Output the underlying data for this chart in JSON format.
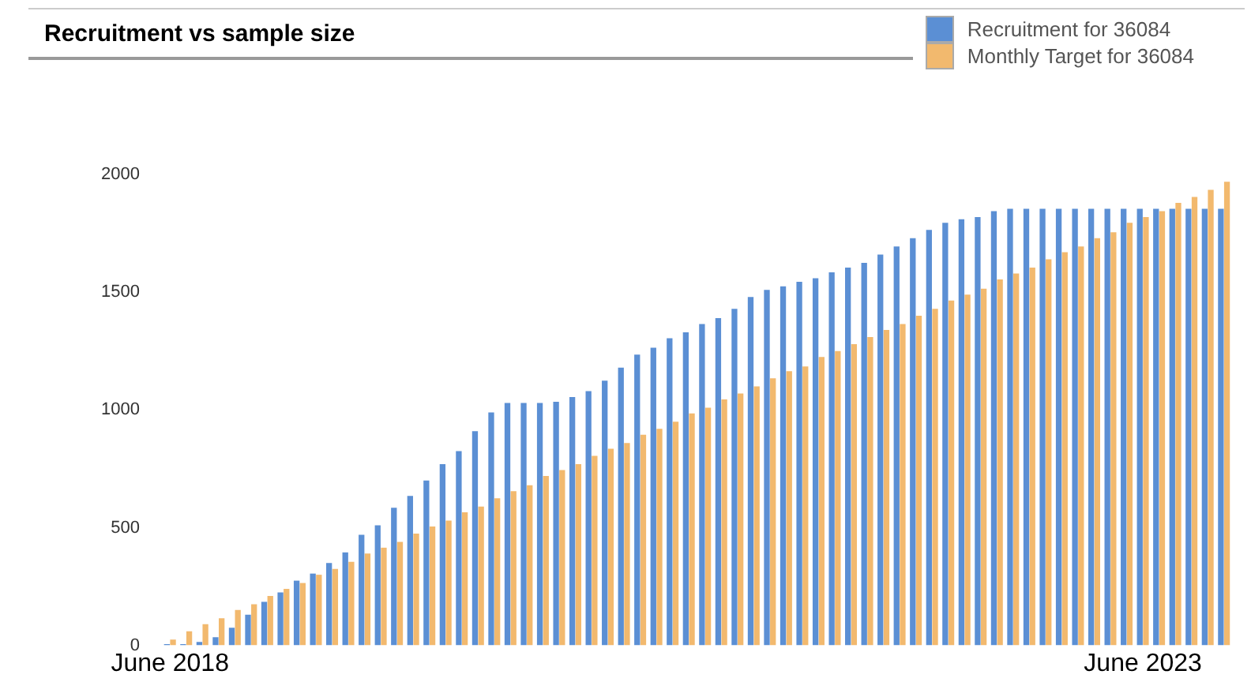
{
  "chart_data": {
    "type": "bar",
    "title": "Recruitment vs sample size",
    "categories": [
      "June 2018",
      null,
      null,
      null,
      null,
      null,
      null,
      null,
      null,
      null,
      null,
      null,
      null,
      null,
      null,
      null,
      null,
      null,
      null,
      null,
      null,
      null,
      null,
      null,
      null,
      null,
      null,
      null,
      null,
      null,
      null,
      null,
      null,
      null,
      null,
      null,
      null,
      null,
      null,
      null,
      null,
      null,
      null,
      null,
      null,
      null,
      null,
      null,
      null,
      null,
      null,
      null,
      null,
      null,
      null,
      null,
      null,
      null,
      null,
      null,
      "June 2023",
      null,
      null,
      null,
      null,
      null
    ],
    "series": [
      {
        "name": "Recruitment for 36084",
        "color": "#5b8fd4",
        "values": [
          5,
          5,
          15,
          35,
          75,
          130,
          185,
          225,
          275,
          305,
          350,
          395,
          470,
          510,
          585,
          635,
          700,
          770,
          825,
          910,
          990,
          1030,
          1030,
          1030,
          1035,
          1055,
          1080,
          1125,
          1180,
          1235,
          1265,
          1305,
          1330,
          1365,
          1390,
          1430,
          1480,
          1510,
          1525,
          1545,
          1560,
          1585,
          1605,
          1625,
          1660,
          1695,
          1730,
          1765,
          1795,
          1810,
          1820,
          1845,
          1855,
          1855,
          1855,
          1855,
          1855,
          1855,
          1855,
          1855,
          1855,
          1855,
          1855,
          1855,
          1855,
          1855
        ]
      },
      {
        "name": "Monthly Target for 36084",
        "color": "#f2b96e",
        "values": [
          25,
          60,
          90,
          115,
          150,
          175,
          210,
          240,
          265,
          300,
          325,
          355,
          390,
          415,
          440,
          475,
          505,
          530,
          565,
          590,
          625,
          655,
          680,
          720,
          745,
          770,
          805,
          835,
          860,
          895,
          920,
          950,
          985,
          1010,
          1045,
          1070,
          1100,
          1135,
          1165,
          1185,
          1225,
          1250,
          1280,
          1310,
          1340,
          1365,
          1400,
          1430,
          1465,
          1490,
          1515,
          1555,
          1580,
          1605,
          1640,
          1670,
          1695,
          1730,
          1755,
          1795,
          1820,
          1845,
          1880,
          1905,
          1935,
          1970
        ]
      }
    ],
    "ylim": [
      0,
      2000
    ],
    "yticks": [
      0,
      500,
      1000,
      1500,
      2000
    ],
    "legend": "top right"
  }
}
